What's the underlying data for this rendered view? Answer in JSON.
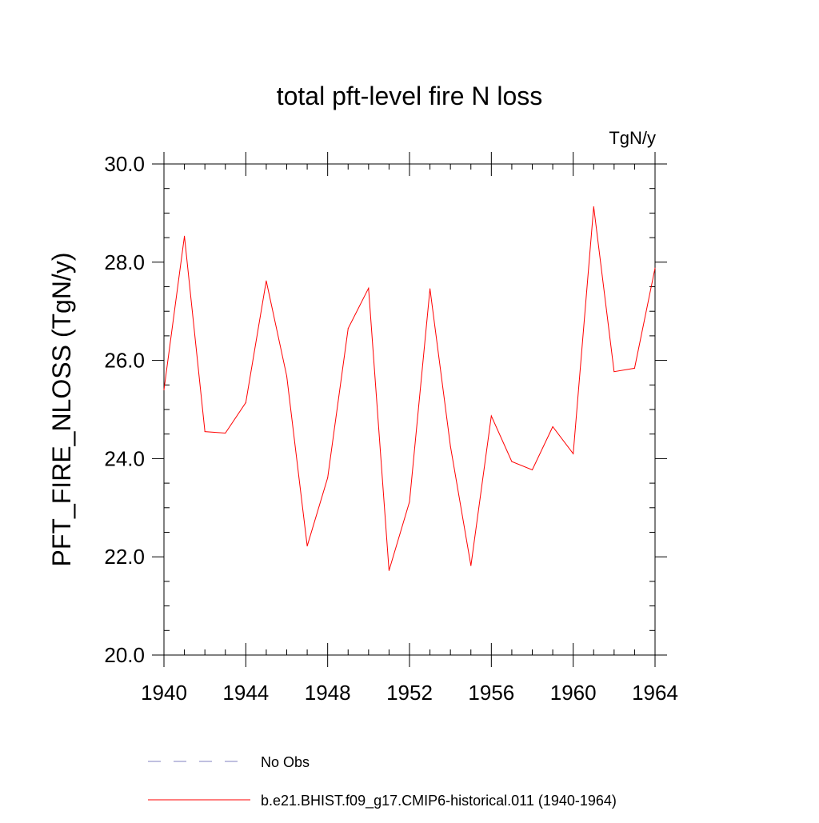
{
  "chart_data": {
    "type": "line",
    "title": "total pft-level fire N loss",
    "units_label": "TgN/y",
    "ylabel": "PFT_FIRE_NLOSS  (TgN/y)",
    "xlabel": "",
    "xlim": [
      1940,
      1964
    ],
    "ylim": [
      20.0,
      30.0
    ],
    "x_ticks": [
      1940,
      1944,
      1948,
      1952,
      1956,
      1960,
      1964
    ],
    "y_ticks": [
      "20.0",
      "22.0",
      "24.0",
      "26.0",
      "28.0",
      "30.0"
    ],
    "grid": false,
    "legend_position": "bottom",
    "series": [
      {
        "name": "b.e21.BHIST.f09_g17.CMIP6-historical.011 (1940-1964)",
        "color": "#ff0000",
        "dash": "solid",
        "x": [
          1940,
          1941,
          1942,
          1943,
          1944,
          1945,
          1946,
          1947,
          1948,
          1949,
          1950,
          1951,
          1952,
          1953,
          1954,
          1955,
          1956,
          1957,
          1958,
          1959,
          1960,
          1961,
          1962,
          1963,
          1964
        ],
        "values": [
          25.4,
          28.53,
          24.55,
          24.52,
          25.14,
          27.62,
          25.68,
          22.22,
          23.61,
          26.65,
          27.47,
          21.72,
          23.12,
          27.46,
          24.25,
          21.82,
          24.87,
          23.94,
          23.77,
          24.65,
          24.1,
          29.13,
          25.77,
          25.84,
          27.88
        ]
      }
    ],
    "legend": [
      {
        "label": "No Obs",
        "color": "#8080c0",
        "dash": "dashed"
      },
      {
        "label": "b.e21.BHIST.f09_g17.CMIP6-historical.011 (1940-1964)",
        "color": "#ff0000",
        "dash": "solid"
      }
    ]
  }
}
